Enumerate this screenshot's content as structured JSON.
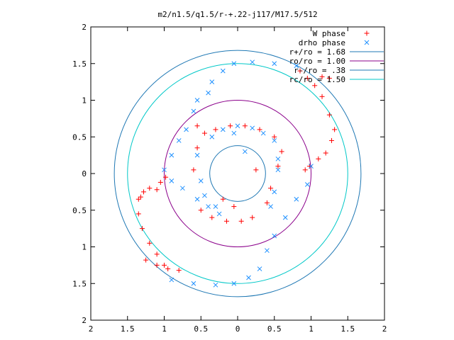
{
  "chart_data": {
    "type": "scatter",
    "title": "m2/n1.5/q1.5/r-+.22-j117/M17.5/512",
    "xlabel": "",
    "ylabel": "",
    "xlim": [
      -2,
      2
    ],
    "ylim": [
      -2,
      2
    ],
    "x_ticks": [
      "2",
      "1.5",
      "1",
      "0.5",
      "0",
      "0.5",
      "1",
      "1.5",
      "2"
    ],
    "y_ticks": [
      "2",
      "1.5",
      "1",
      "0.5",
      "0",
      "0.5",
      "1",
      "1.5",
      "2"
    ],
    "grid": false,
    "legend_position": "top-right",
    "series": [
      {
        "name": "W phase",
        "marker": "plus",
        "color": "#ff0000",
        "points": [
          [
            -1.35,
            -0.35
          ],
          [
            -1.35,
            -0.55
          ],
          [
            -1.3,
            -0.75
          ],
          [
            -1.2,
            -0.95
          ],
          [
            -1.1,
            -1.1
          ],
          [
            -1.0,
            -1.25
          ],
          [
            -1.25,
            -1.18
          ],
          [
            -1.1,
            -1.25
          ],
          [
            -0.95,
            -1.3
          ],
          [
            -0.8,
            -1.32
          ],
          [
            -1.32,
            -0.32
          ],
          [
            -1.28,
            -0.25
          ],
          [
            -1.2,
            -0.2
          ],
          [
            -1.1,
            -0.22
          ],
          [
            -1.05,
            -0.12
          ],
          [
            -0.98,
            -0.05
          ],
          [
            0.85,
            1.4
          ],
          [
            0.95,
            1.3
          ],
          [
            1.05,
            1.2
          ],
          [
            1.15,
            1.05
          ],
          [
            1.25,
            0.8
          ],
          [
            1.32,
            0.6
          ],
          [
            1.28,
            0.45
          ],
          [
            1.2,
            0.28
          ],
          [
            1.1,
            0.2
          ],
          [
            0.98,
            0.1
          ],
          [
            0.92,
            0.05
          ],
          [
            1.25,
            1.3
          ],
          [
            1.15,
            1.32
          ],
          [
            -0.55,
            0.65
          ],
          [
            -0.3,
            0.6
          ],
          [
            -0.1,
            0.65
          ],
          [
            0.1,
            0.65
          ],
          [
            0.3,
            0.6
          ],
          [
            0.5,
            0.5
          ],
          [
            0.6,
            0.3
          ],
          [
            0.55,
            0.1
          ],
          [
            0.45,
            -0.2
          ],
          [
            0.4,
            -0.4
          ],
          [
            0.2,
            -0.6
          ],
          [
            0.05,
            -0.65
          ],
          [
            -0.15,
            -0.65
          ],
          [
            -0.35,
            -0.6
          ],
          [
            -0.5,
            -0.5
          ],
          [
            -0.6,
            0.05
          ],
          [
            -0.55,
            0.35
          ],
          [
            -0.45,
            0.55
          ],
          [
            0.25,
            0.05
          ],
          [
            -0.2,
            -0.35
          ],
          [
            -0.05,
            -0.45
          ]
        ]
      },
      {
        "name": "drho phase",
        "marker": "x",
        "color": "#1e90ff",
        "points": [
          [
            -0.2,
            1.4
          ],
          [
            -0.05,
            1.5
          ],
          [
            0.2,
            1.52
          ],
          [
            0.5,
            1.5
          ],
          [
            0.8,
            1.47
          ],
          [
            -0.35,
            1.25
          ],
          [
            -0.4,
            1.1
          ],
          [
            -0.55,
            1.0
          ],
          [
            -0.6,
            0.85
          ],
          [
            -0.7,
            0.6
          ],
          [
            -0.8,
            0.45
          ],
          [
            -0.9,
            0.25
          ],
          [
            -1.0,
            0.05
          ],
          [
            -0.9,
            -0.1
          ],
          [
            -0.75,
            -0.2
          ],
          [
            -0.55,
            -0.35
          ],
          [
            -0.4,
            -0.45
          ],
          [
            -0.25,
            -0.55
          ],
          [
            -0.9,
            -1.45
          ],
          [
            -0.6,
            -1.5
          ],
          [
            -0.3,
            -1.52
          ],
          [
            -0.05,
            -1.5
          ],
          [
            0.15,
            -1.42
          ],
          [
            0.3,
            -1.3
          ],
          [
            0.4,
            -1.05
          ],
          [
            0.5,
            -0.85
          ],
          [
            0.65,
            -0.6
          ],
          [
            0.8,
            -0.35
          ],
          [
            0.95,
            -0.15
          ],
          [
            1.0,
            0.1
          ],
          [
            -0.35,
            0.5
          ],
          [
            -0.2,
            0.6
          ],
          [
            0.0,
            0.65
          ],
          [
            0.2,
            0.62
          ],
          [
            0.35,
            0.55
          ],
          [
            0.5,
            0.45
          ],
          [
            -0.55,
            0.25
          ],
          [
            -0.5,
            -0.1
          ],
          [
            -0.45,
            -0.3
          ],
          [
            -0.3,
            -0.45
          ],
          [
            0.45,
            -0.45
          ],
          [
            0.5,
            -0.25
          ],
          [
            0.55,
            0.05
          ],
          [
            0.55,
            0.2
          ],
          [
            -0.05,
            0.55
          ],
          [
            0.1,
            0.3
          ]
        ]
      }
    ],
    "circles": [
      {
        "name": "r+/ro = 1.68",
        "radius": 1.68,
        "color": "#1f78b4"
      },
      {
        "name": "ro/ro = 1.00",
        "radius": 1.0,
        "color": "#8b008b"
      },
      {
        "name": "r-/ro = .38",
        "radius": 0.38,
        "color": "#1f78b4"
      },
      {
        "name": "rc/ro = 1.50",
        "radius": 1.5,
        "color": "#00c8c8"
      }
    ]
  }
}
